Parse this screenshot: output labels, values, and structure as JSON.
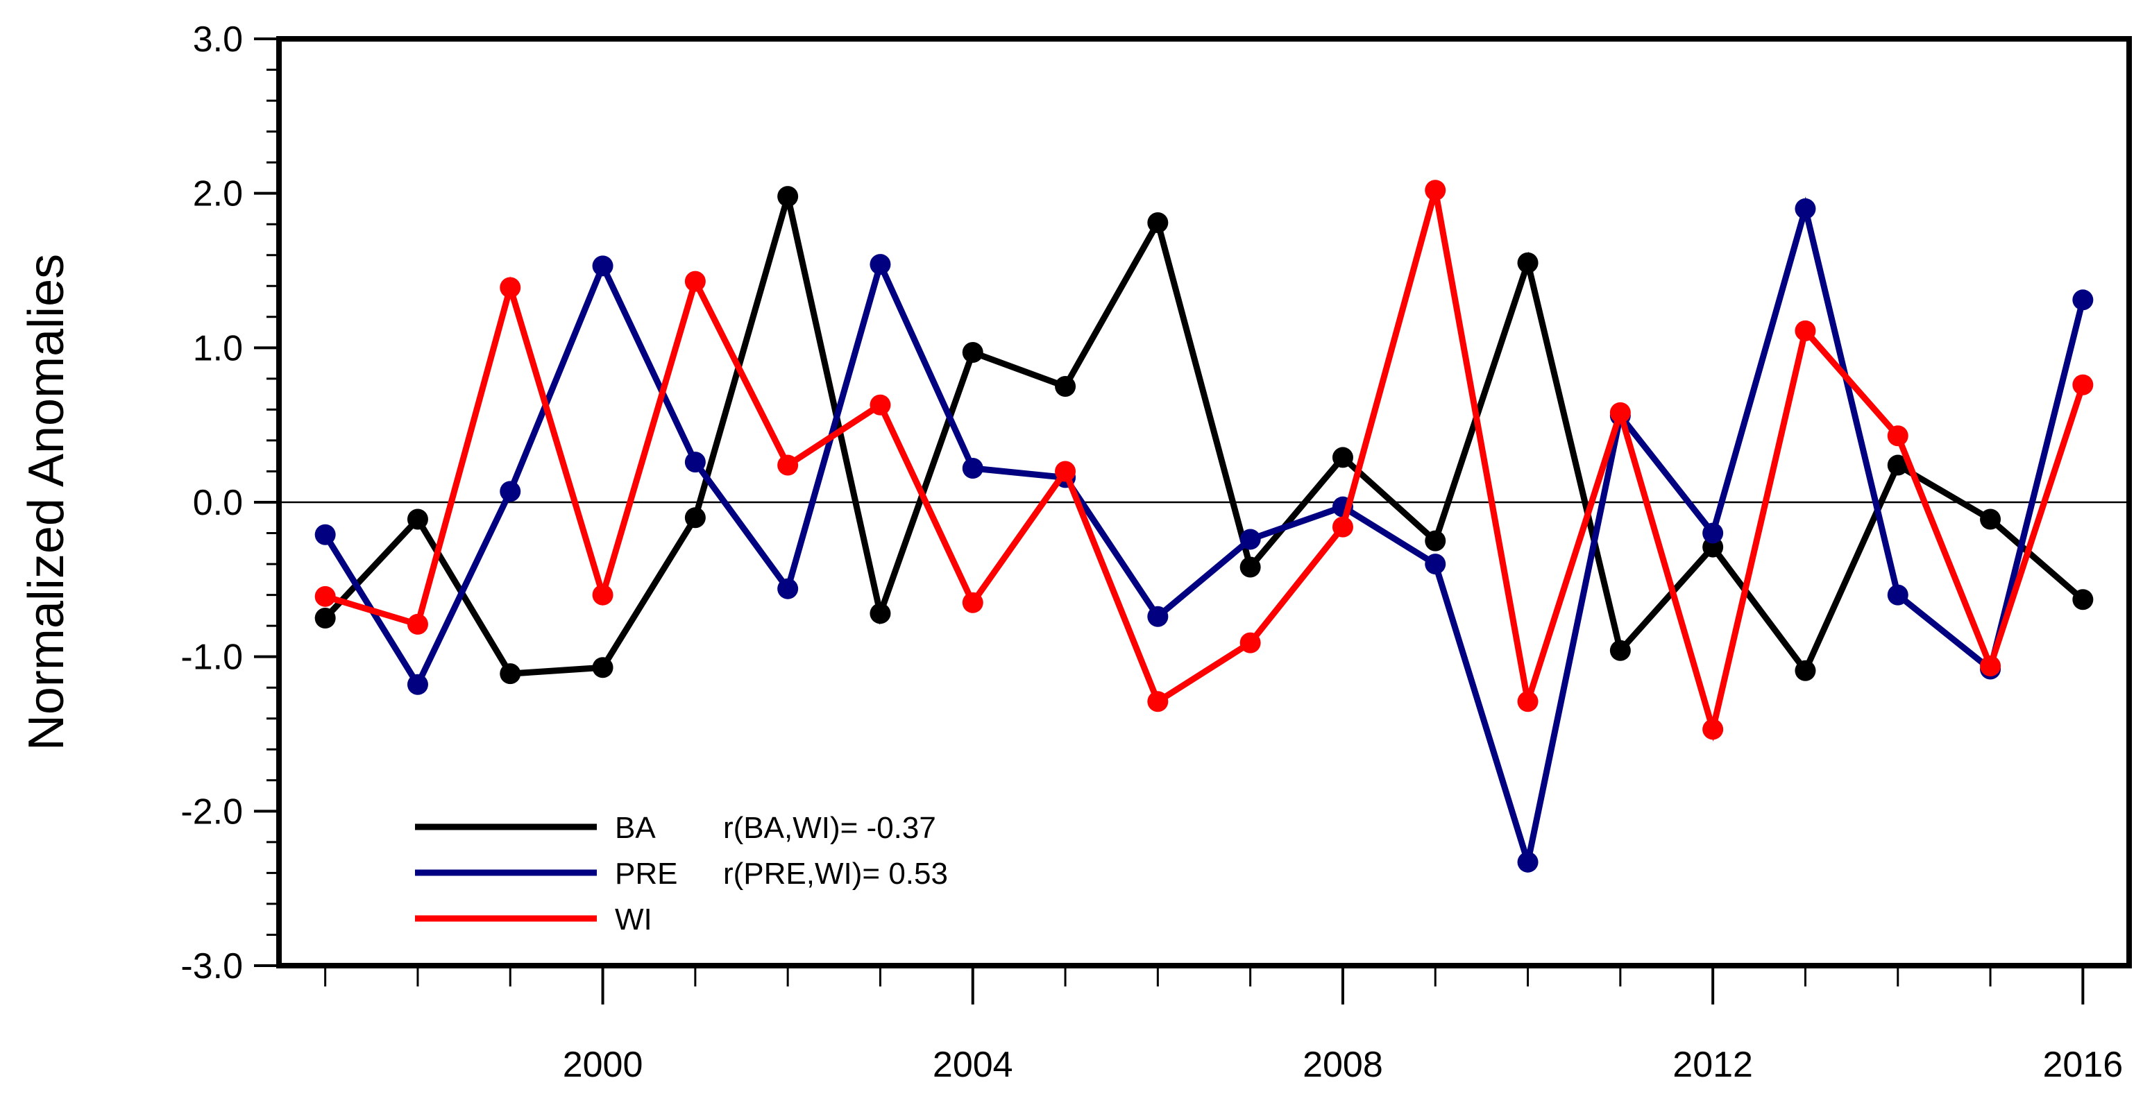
{
  "chart_data": {
    "type": "line",
    "title": "",
    "xlabel": "",
    "ylabel": "Normalized Anomalies",
    "xlim": [
      1996.5,
      2016.5
    ],
    "ylim": [
      -3.0,
      3.0
    ],
    "x": [
      1997,
      1998,
      1999,
      2000,
      2001,
      2002,
      2003,
      2004,
      2005,
      2006,
      2007,
      2008,
      2009,
      2010,
      2011,
      2012,
      2013,
      2014,
      2015,
      2016
    ],
    "x_ticks": [
      2000,
      2004,
      2008,
      2012,
      2016
    ],
    "x_tick_labels": [
      "2000",
      "2004",
      "2008",
      "2012",
      "2016"
    ],
    "x_minor_ticks": [
      1997,
      1998,
      1999,
      2000,
      2001,
      2002,
      2003,
      2004,
      2005,
      2006,
      2007,
      2008,
      2009,
      2010,
      2011,
      2012,
      2013,
      2014,
      2015,
      2016
    ],
    "y_ticks": [
      -3.0,
      -2.0,
      -1.0,
      0.0,
      1.0,
      2.0,
      3.0
    ],
    "y_tick_labels": [
      "-3.0",
      "-2.0",
      "-1.0",
      "0.0",
      "1.0",
      "2.0",
      "3.0"
    ],
    "y_minor_step": 0.2,
    "reference_line": 0.0,
    "series": [
      {
        "name": "BA",
        "color": "#000000",
        "values": [
          -0.75,
          -0.11,
          -1.11,
          -1.07,
          -0.1,
          1.98,
          -0.72,
          0.97,
          0.75,
          1.81,
          -0.42,
          0.29,
          -0.25,
          1.55,
          -0.96,
          -0.29,
          -1.09,
          0.24,
          -0.11,
          -0.63
        ]
      },
      {
        "name": "PRE",
        "color": "#000080",
        "values": [
          -0.21,
          -1.18,
          0.07,
          1.53,
          0.26,
          -0.56,
          1.54,
          0.22,
          0.16,
          -0.74,
          -0.24,
          -0.03,
          -0.4,
          -2.33,
          0.56,
          -0.2,
          1.9,
          -0.6,
          -1.08,
          1.31
        ]
      },
      {
        "name": "WI",
        "color": "#ff0000",
        "values": [
          -0.61,
          -0.79,
          1.39,
          -0.6,
          1.43,
          0.24,
          0.63,
          -0.65,
          0.2,
          -1.29,
          -0.91,
          -0.16,
          2.02,
          -1.29,
          0.58,
          -1.47,
          1.11,
          0.43,
          -1.06,
          0.76
        ]
      }
    ],
    "legend": {
      "placement": "bottom-left",
      "entries": [
        {
          "series": "BA",
          "label": "BA",
          "stat": "r(BA,WI)= -0.37",
          "color": "#000000"
        },
        {
          "series": "PRE",
          "label": "PRE",
          "stat": "r(PRE,WI)= 0.53",
          "color": "#000080"
        },
        {
          "series": "WI",
          "label": "WI",
          "stat": "",
          "color": "#ff0000"
        }
      ]
    }
  }
}
